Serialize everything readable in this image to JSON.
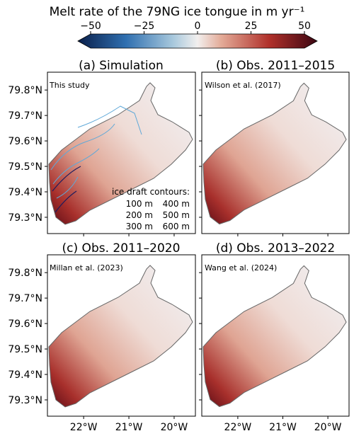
{
  "colorbar": {
    "title": "Melt rate of the 79NG ice tongue in m yr⁻¹",
    "lim": [
      -50,
      50
    ],
    "ticks": [
      {
        "value": -50,
        "label": "−50"
      },
      {
        "value": -25,
        "label": "−25"
      },
      0,
      25,
      50
    ]
  },
  "map": {
    "xlim": [
      -22.8,
      -19.53
    ],
    "ylim": [
      79.236,
      79.87
    ],
    "xticks": [
      {
        "value": -22,
        "label": "22°W"
      },
      {
        "value": -21,
        "label": "21°W"
      },
      {
        "value": -20,
        "label": "20°W"
      }
    ],
    "yticks": [
      {
        "value": 79.3,
        "label": "79.3°N"
      },
      {
        "value": 79.4,
        "label": "79.4°N"
      },
      {
        "value": 79.5,
        "label": "79.5°N"
      },
      {
        "value": 79.6,
        "label": "79.6°N"
      },
      {
        "value": 79.7,
        "label": "79.7°N"
      },
      {
        "value": 79.8,
        "label": "79.8°N"
      }
    ]
  },
  "panels": [
    {
      "title": "(a) Simulation",
      "source": "This study"
    },
    {
      "title": "(b) Obs. 2011–2015",
      "source": "Wilson et al. (2017)"
    },
    {
      "title": "(c) Obs. 2011–2020",
      "source": "Millan et al. (2023)"
    },
    {
      "title": "(d) Obs. 2013–2022",
      "source": "Wang et al. (2024)"
    }
  ],
  "legend": {
    "title": "ice draft contours:",
    "items": [
      {
        "label": "100 m",
        "color": "#8fd3e3"
      },
      {
        "label": "200 m",
        "color": "#5fa8d8"
      },
      {
        "label": "300 m",
        "color": "#2f6db0"
      },
      {
        "label": "400 m",
        "color": "#2b3d9c"
      },
      {
        "label": "500 m",
        "color": "#1c1c5e"
      },
      {
        "label": "600 m",
        "color": "#000000"
      }
    ]
  }
}
